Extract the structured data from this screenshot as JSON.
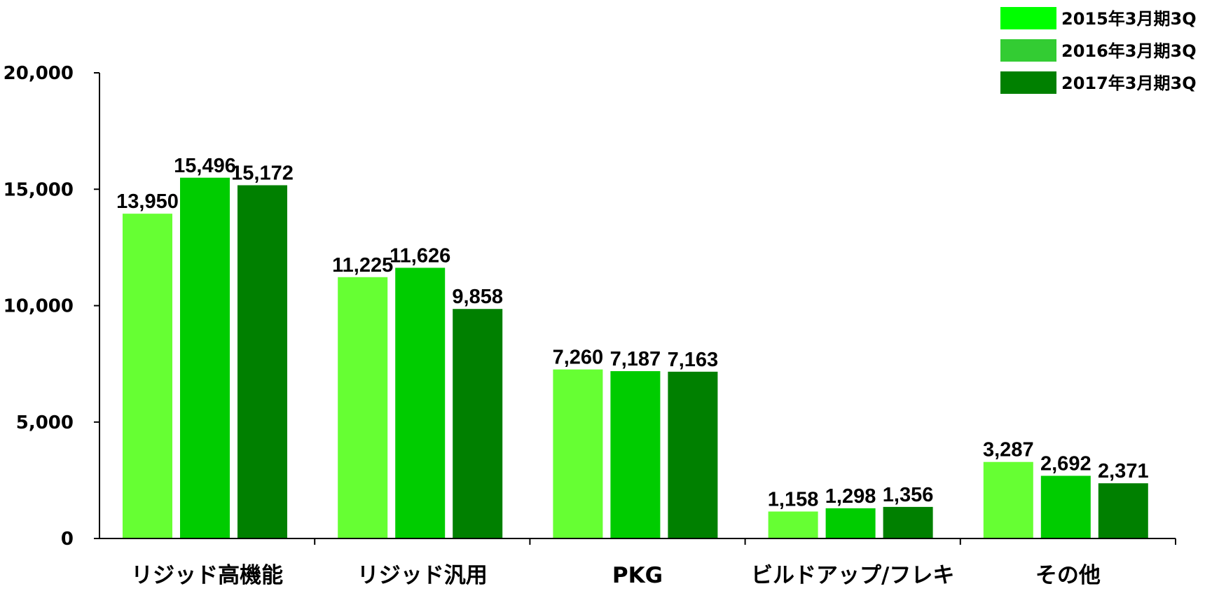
{
  "chart_data": {
    "type": "bar",
    "categories": [
      "リジッド高機能",
      "リジッド汎用",
      "PKG",
      "ビルドアップ/フレキ",
      "その他"
    ],
    "series": [
      {
        "name": "2015年3月期3Q",
        "color": "#66ff33",
        "values": [
          13950,
          11225,
          7260,
          1158,
          3287
        ]
      },
      {
        "name": "2016年3月期3Q",
        "color": "#00cc00",
        "values": [
          15496,
          11626,
          7187,
          1298,
          2692
        ]
      },
      {
        "name": "2017年3月期3Q",
        "color": "#008000",
        "values": [
          15172,
          9858,
          7163,
          1356,
          2371
        ]
      }
    ],
    "legend_swatch_colors": [
      "#00ff00",
      "#33cc33",
      "#008000"
    ],
    "ylim": [
      0,
      20000
    ],
    "yticks": [
      0,
      5000,
      10000,
      15000,
      20000
    ],
    "ytick_labels": [
      "0",
      "5,000",
      "10,000",
      "15,000",
      "20,000"
    ],
    "legend_position": "top-right",
    "grid": false,
    "title": "",
    "xlabel": "",
    "ylabel": ""
  }
}
